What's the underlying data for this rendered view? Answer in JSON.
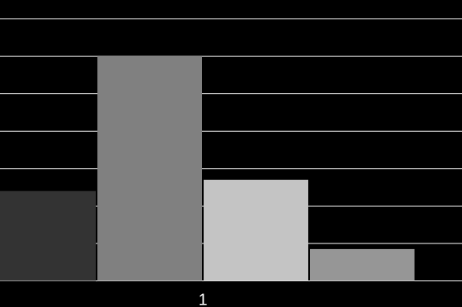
{
  "chart_data": {
    "type": "bar",
    "categories": [
      "1"
    ],
    "series": [
      {
        "color": "#333333",
        "values": [
          2.4
        ]
      },
      {
        "color": "#808080",
        "values": [
          6.0
        ]
      },
      {
        "color": "#c4c4c4",
        "values": [
          2.7
        ]
      },
      {
        "color": "#969696",
        "values": [
          0.85
        ]
      }
    ],
    "ylim": [
      0,
      7
    ],
    "yticks": [
      0,
      1,
      2,
      3,
      4,
      5,
      6,
      7
    ],
    "grid": true
  }
}
